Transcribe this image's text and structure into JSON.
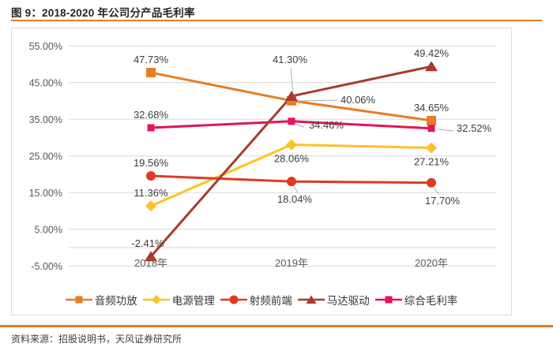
{
  "header": {
    "title": "图 9：2018-2020 年公司分产品毛利率"
  },
  "footer": {
    "source": "资料来源：招股说明书，天风证券研究所"
  },
  "theme": {
    "accent_orange": "#E87D23",
    "grid_color": "#D9D9D9",
    "axis_text_color": "#595959",
    "value_label_color": "#3D3D3D",
    "leader_line_color": "#ACACAC",
    "card_border_color": "#DBDBDB"
  },
  "chart_data": {
    "type": "line",
    "title": "2018-2020 年公司分产品毛利率",
    "categories": [
      "2018年",
      "2019年",
      "2020年"
    ],
    "series": [
      {
        "name": "音频功放",
        "marker": "square",
        "color": "#E87D23",
        "values": [
          47.73,
          40.06,
          34.65
        ]
      },
      {
        "name": "电源管理",
        "marker": "diamond",
        "color": "#FFC125",
        "values": [
          11.36,
          28.06,
          27.21
        ]
      },
      {
        "name": "射频前端",
        "marker": "circle",
        "color": "#DF3B22",
        "values": [
          19.56,
          18.04,
          17.7
        ]
      },
      {
        "name": "马达驱动",
        "marker": "triangle",
        "color": "#A93B2B",
        "values": [
          -2.41,
          41.3,
          49.42
        ]
      },
      {
        "name": "综合毛利率",
        "marker": "square",
        "color": "#E3145B",
        "values": [
          32.68,
          34.46,
          32.52
        ]
      }
    ],
    "ylim": [
      -5,
      55
    ],
    "ytick_step": 10,
    "yticks": [
      55,
      45,
      35,
      25,
      15,
      5,
      -5
    ],
    "ytick_labels": [
      "55.00%",
      "45.00%",
      "35.00%",
      "25.00%",
      "15.00%",
      "5.00%",
      "-5.00%"
    ],
    "zero_axis_line": true,
    "value_labels_shown": true,
    "value_label_format": "0.00%",
    "grid": true,
    "legend_position": "bottom"
  }
}
